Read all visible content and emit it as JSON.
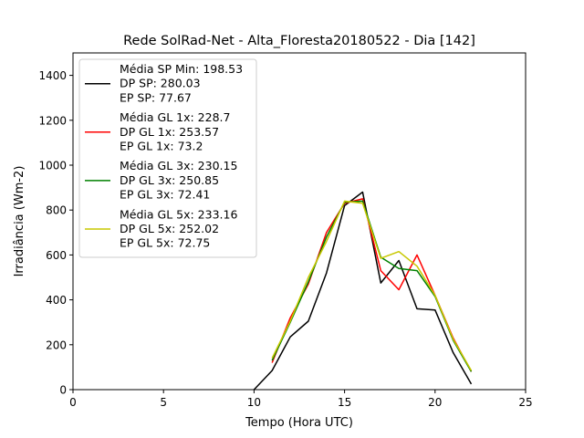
{
  "chart_data": {
    "type": "line",
    "title": "Rede SolRad-Net - Alta_Floresta20180522 - Dia [142]",
    "xlabel": "Tempo (Hora UTC)",
    "ylabel": "Irradiância (Wm-2)",
    "xlim": [
      0,
      25
    ],
    "ylim": [
      0,
      1500
    ],
    "xticks": [
      0,
      5,
      10,
      15,
      20,
      25
    ],
    "yticks": [
      0,
      200,
      400,
      600,
      800,
      1000,
      1200,
      1400
    ],
    "grid": false,
    "legend_position": "upper-left",
    "series": [
      {
        "name": "SP",
        "color": "#000000",
        "legend": [
          "Média SP Min: 198.53",
          "DP SP: 280.03",
          "EP SP: 77.67"
        ],
        "x": [
          10,
          11,
          12,
          13,
          14,
          15,
          16,
          17,
          18,
          19,
          20,
          21,
          22
        ],
        "y": [
          0,
          85,
          235,
          305,
          520,
          820,
          880,
          475,
          575,
          360,
          355,
          165,
          25
        ]
      },
      {
        "name": "GL 1x",
        "color": "#ff0000",
        "legend": [
          "Média GL 1x: 228.7",
          "DP GL 1x: 253.57",
          "EP GL 1x: 73.2"
        ],
        "x": [
          11,
          12,
          13,
          14,
          15,
          16,
          17,
          18,
          19,
          20,
          21,
          22
        ],
        "y": [
          120,
          320,
          470,
          700,
          830,
          850,
          530,
          445,
          600,
          420,
          230,
          80
        ]
      },
      {
        "name": "GL 3x",
        "color": "#008000",
        "legend": [
          "Média GL 3x: 230.15",
          "DP GL 3x: 250.85",
          "EP GL 3x: 72.41"
        ],
        "x": [
          11,
          12,
          13,
          14,
          15,
          16,
          17,
          18,
          19,
          20,
          21,
          22
        ],
        "y": [
          130,
          300,
          480,
          680,
          835,
          840,
          590,
          540,
          530,
          415,
          220,
          80
        ]
      },
      {
        "name": "GL 5x",
        "color": "#c8c800",
        "legend": [
          "Média GL 5x: 233.16",
          "DP GL 5x: 252.02",
          "EP GL 5x: 72.75"
        ],
        "x": [
          11,
          12,
          13,
          14,
          15,
          16,
          17,
          18,
          19,
          20,
          21,
          22
        ],
        "y": [
          140,
          305,
          500,
          660,
          840,
          830,
          585,
          615,
          550,
          420,
          225,
          85
        ]
      }
    ]
  }
}
